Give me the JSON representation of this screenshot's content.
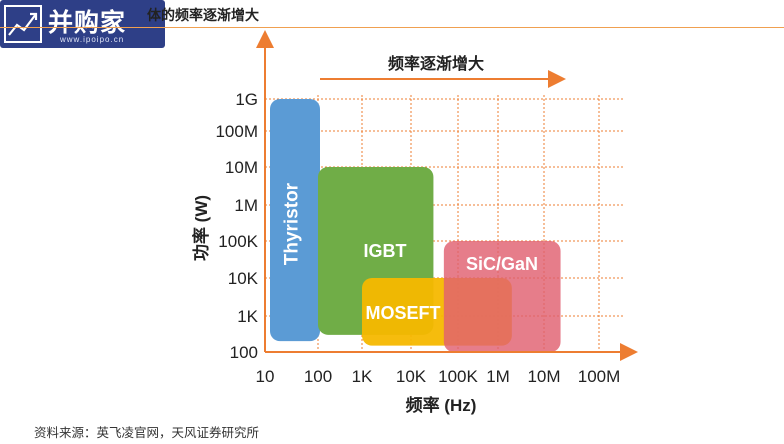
{
  "logo": {
    "brand": "并购家",
    "url": "www.ipoipo.cn",
    "icon": "line-chart-icon"
  },
  "header": {
    "title_fragment": "体的频率逐渐增大"
  },
  "chart_data": {
    "type": "area",
    "arrow_label": "频率逐渐增大",
    "xlabel": "频率 (Hz)",
    "ylabel": "功率 (W)",
    "x_ticks": [
      "10",
      "100",
      "1K",
      "10K",
      "100K",
      "1M",
      "10M",
      "100M"
    ],
    "x_tick_values": [
      10,
      100,
      1000,
      10000,
      100000,
      1000000,
      10000000,
      100000000
    ],
    "y_ticks": [
      "100",
      "1K",
      "10K",
      "100K",
      "1M",
      "10M",
      "100M",
      "1G"
    ],
    "y_tick_values": [
      100,
      1000,
      10000,
      100000,
      1000000,
      10000000,
      100000000,
      1000000000
    ],
    "x_scale": "log",
    "y_scale": "log",
    "grid": true,
    "regions": [
      {
        "name": "Thyristor",
        "x_range": [
          10,
          100
        ],
        "y_range": [
          200,
          1000000000
        ],
        "color": "#5b9bd5"
      },
      {
        "name": "IGBT",
        "x_range": [
          100,
          30000
        ],
        "y_range": [
          300,
          10000000
        ],
        "color": "#70ad47"
      },
      {
        "name": "MOSEFT",
        "x_range": [
          1000,
          2000000
        ],
        "y_range": [
          150,
          10000
        ],
        "color": "#f5b800"
      },
      {
        "name": "SiC/GaN",
        "x_range": [
          50000,
          20000000
        ],
        "y_range": [
          100,
          100000
        ],
        "color": "#e06070"
      }
    ]
  },
  "footer": {
    "source": "资料来源：英飞凌官网，天风证券研究所"
  }
}
